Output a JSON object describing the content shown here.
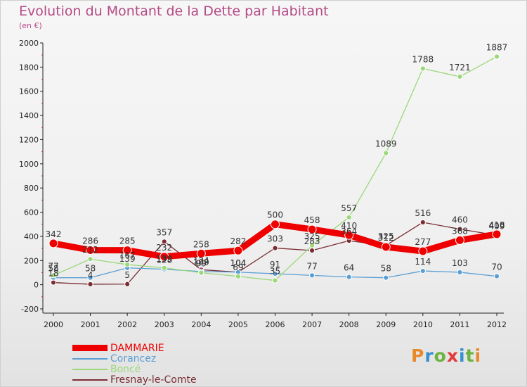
{
  "title": "Evolution du Montant de la Dette par Habitant",
  "subtitle": "(en €)",
  "logo": {
    "letters": [
      "P",
      "r",
      "o",
      "x",
      "i",
      "t",
      "i"
    ],
    "colors": [
      "#e88a2a",
      "#3a8fd0",
      "#6ab33e",
      "#e23b3b",
      "#3a8fd0",
      "#6ab33e",
      "#e88a2a"
    ]
  },
  "chart_data": {
    "type": "line",
    "x": [
      "2000",
      "2001",
      "2002",
      "2003",
      "2004",
      "2005",
      "2006",
      "2007",
      "2008",
      "2009",
      "2010",
      "2011",
      "2012"
    ],
    "ylim": [
      -200,
      2000
    ],
    "yticks": [
      "-200",
      "0",
      "200",
      "400",
      "600",
      "800",
      "1000",
      "1200",
      "1400",
      "1600",
      "1800",
      "2000"
    ],
    "grid": false,
    "legend_position": "bottom-left",
    "series": [
      {
        "name": "DAMMARIE",
        "color": "#ee0000",
        "values": [
          342,
          286,
          285,
          232,
          258,
          282,
          500,
          458,
          410,
          312,
          277,
          368,
          418
        ],
        "labels": [
          "342",
          "286",
          "285",
          "232",
          "258",
          "282",
          "500",
          "458",
          "410",
          "312",
          "277",
          "368",
          "418"
        ]
      },
      {
        "name": "Corancez",
        "color": "#5b9fd4",
        "values": [
          58,
          58,
          139,
          128,
          109,
          104,
          91,
          77,
          64,
          58,
          114,
          103,
          70
        ],
        "labels": [
          "58",
          "58",
          "139",
          "128",
          "109",
          "104",
          "91",
          "77",
          "64",
          "58",
          "114",
          "103",
          "70"
        ]
      },
      {
        "name": "Boncé",
        "color": "#9ad87a",
        "values": [
          77,
          212,
          167,
          139,
          99,
          69,
          35,
          325,
          557,
          1089,
          1788,
          1721,
          1887
        ],
        "labels": [
          "77",
          "212",
          "167",
          "139",
          "99",
          "69",
          "35",
          "325",
          "557",
          "1089",
          "1788",
          "1721",
          "1887"
        ]
      },
      {
        "name": "Fresnay-le-Comte",
        "color": "#7a2e34",
        "values": [
          18,
          4,
          5,
          357,
          124,
          104,
          303,
          283,
          364,
          325,
          516,
          460,
          409
        ],
        "labels": [
          "18",
          "4",
          "5",
          "357",
          "124",
          "104",
          "303",
          "283",
          "364",
          "325",
          "516",
          "460",
          "409"
        ]
      }
    ]
  }
}
